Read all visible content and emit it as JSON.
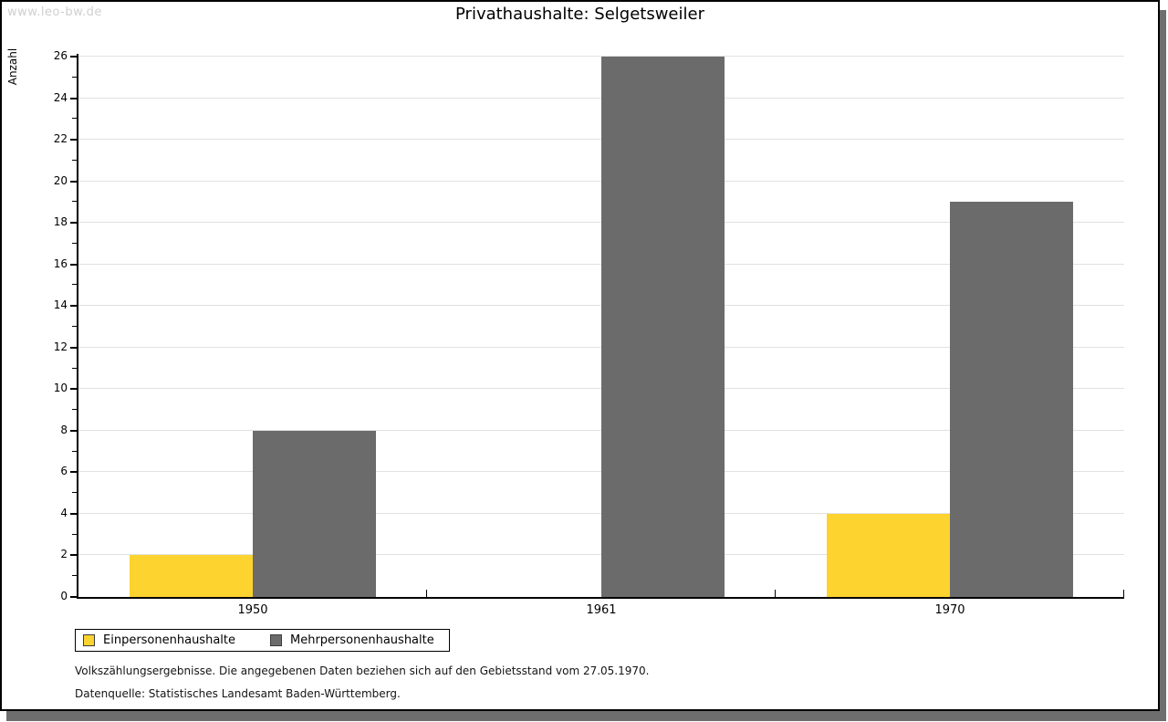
{
  "watermark": "www.leo-bw.de",
  "title": "Privathaushalte: Selgetsweiler",
  "chart_data": {
    "type": "bar",
    "title": "Privathaushalte: Selgetsweiler",
    "categories": [
      "1950",
      "1961",
      "1970"
    ],
    "series": [
      {
        "name": "Einpersonenhaushalte",
        "color": "#fcd32f",
        "values": [
          2,
          0,
          4
        ]
      },
      {
        "name": "Mehrpersonenhaushalte",
        "color": "#6b6b6b",
        "values": [
          8,
          26,
          19
        ]
      }
    ],
    "xlabel": "",
    "ylabel": "Anzahl",
    "ylim": [
      0,
      26
    ],
    "ytick_major_step": 2,
    "ytick_minor_step": 1,
    "grid": true,
    "legend_position": "bottom-left"
  },
  "footer": {
    "line1": "Volkszählungsergebnisse. Die angegebenen Daten beziehen sich auf den Gebietsstand vom 27.05.1970.",
    "line2": "Datenquelle: Statistisches Landesamt Baden-Württemberg."
  },
  "colors": {
    "series_yellow": "#fcd32f",
    "series_gray": "#6b6b6b",
    "gridline": "#e1e1e1",
    "axis": "#000000",
    "watermark": "#cfcfcf",
    "page_shadow": "#6e6e6e",
    "page_border": "#000000",
    "background": "#ffffff"
  }
}
